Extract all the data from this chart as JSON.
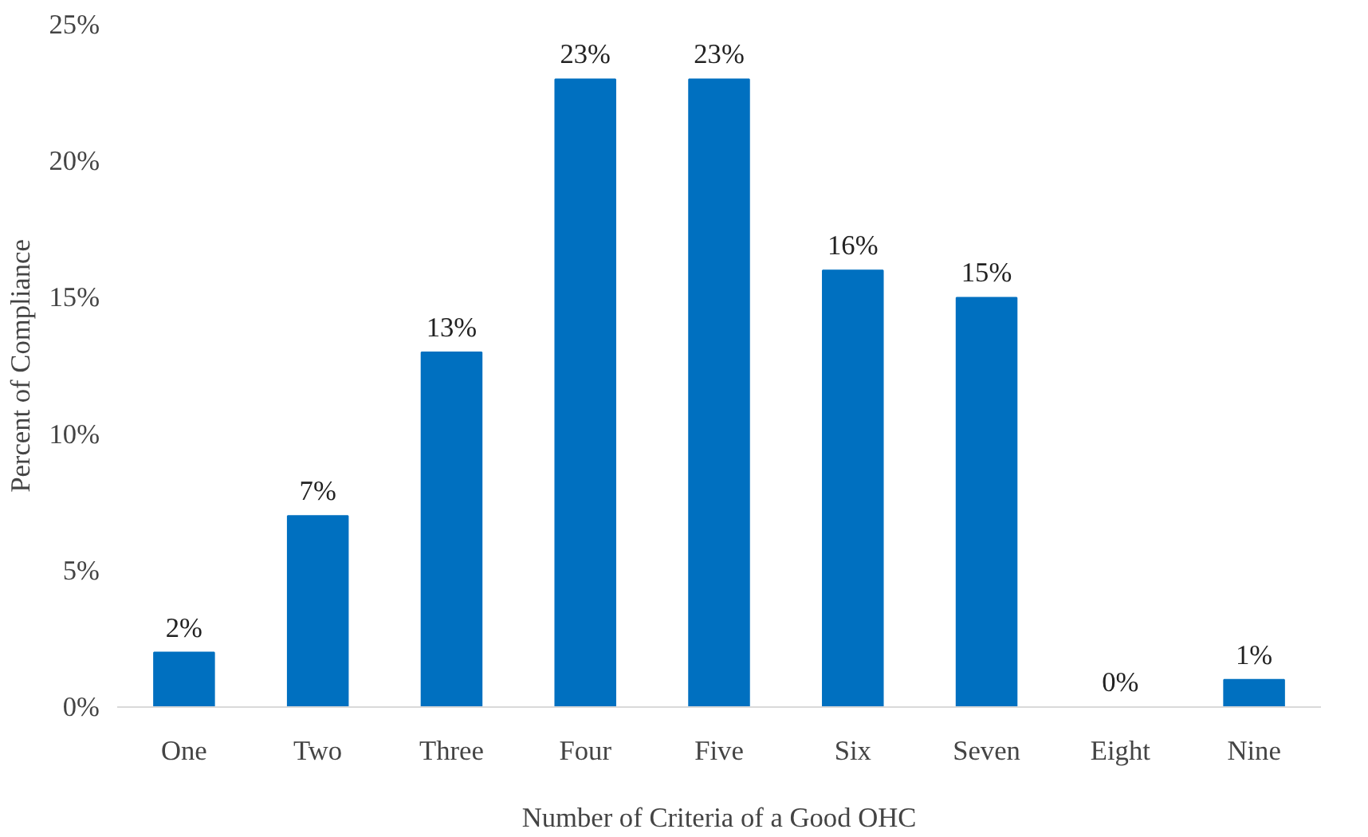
{
  "chart_data": {
    "type": "bar",
    "xlabel": "Number of Criteria of a Good OHC",
    "ylabel": "Percent of Compliance",
    "categories": [
      "One",
      "Two",
      "Three",
      "Four",
      "Five",
      "Six",
      "Seven",
      "Eight",
      "Nine"
    ],
    "values": [
      2,
      7,
      13,
      23,
      23,
      16,
      15,
      0,
      1
    ],
    "value_labels": [
      "2%",
      "7%",
      "13%",
      "23%",
      "23%",
      "16%",
      "15%",
      "0%",
      "1%"
    ],
    "color": "#0070c0",
    "ylim": [
      0,
      25
    ],
    "yticks": [
      {
        "value": 0,
        "label": "0%"
      },
      {
        "value": 5,
        "label": "5%"
      },
      {
        "value": 10,
        "label": "10%"
      },
      {
        "value": 15,
        "label": "15%"
      },
      {
        "value": 20,
        "label": "20%"
      },
      {
        "value": 25,
        "label": "25%"
      }
    ],
    "grid": false
  }
}
